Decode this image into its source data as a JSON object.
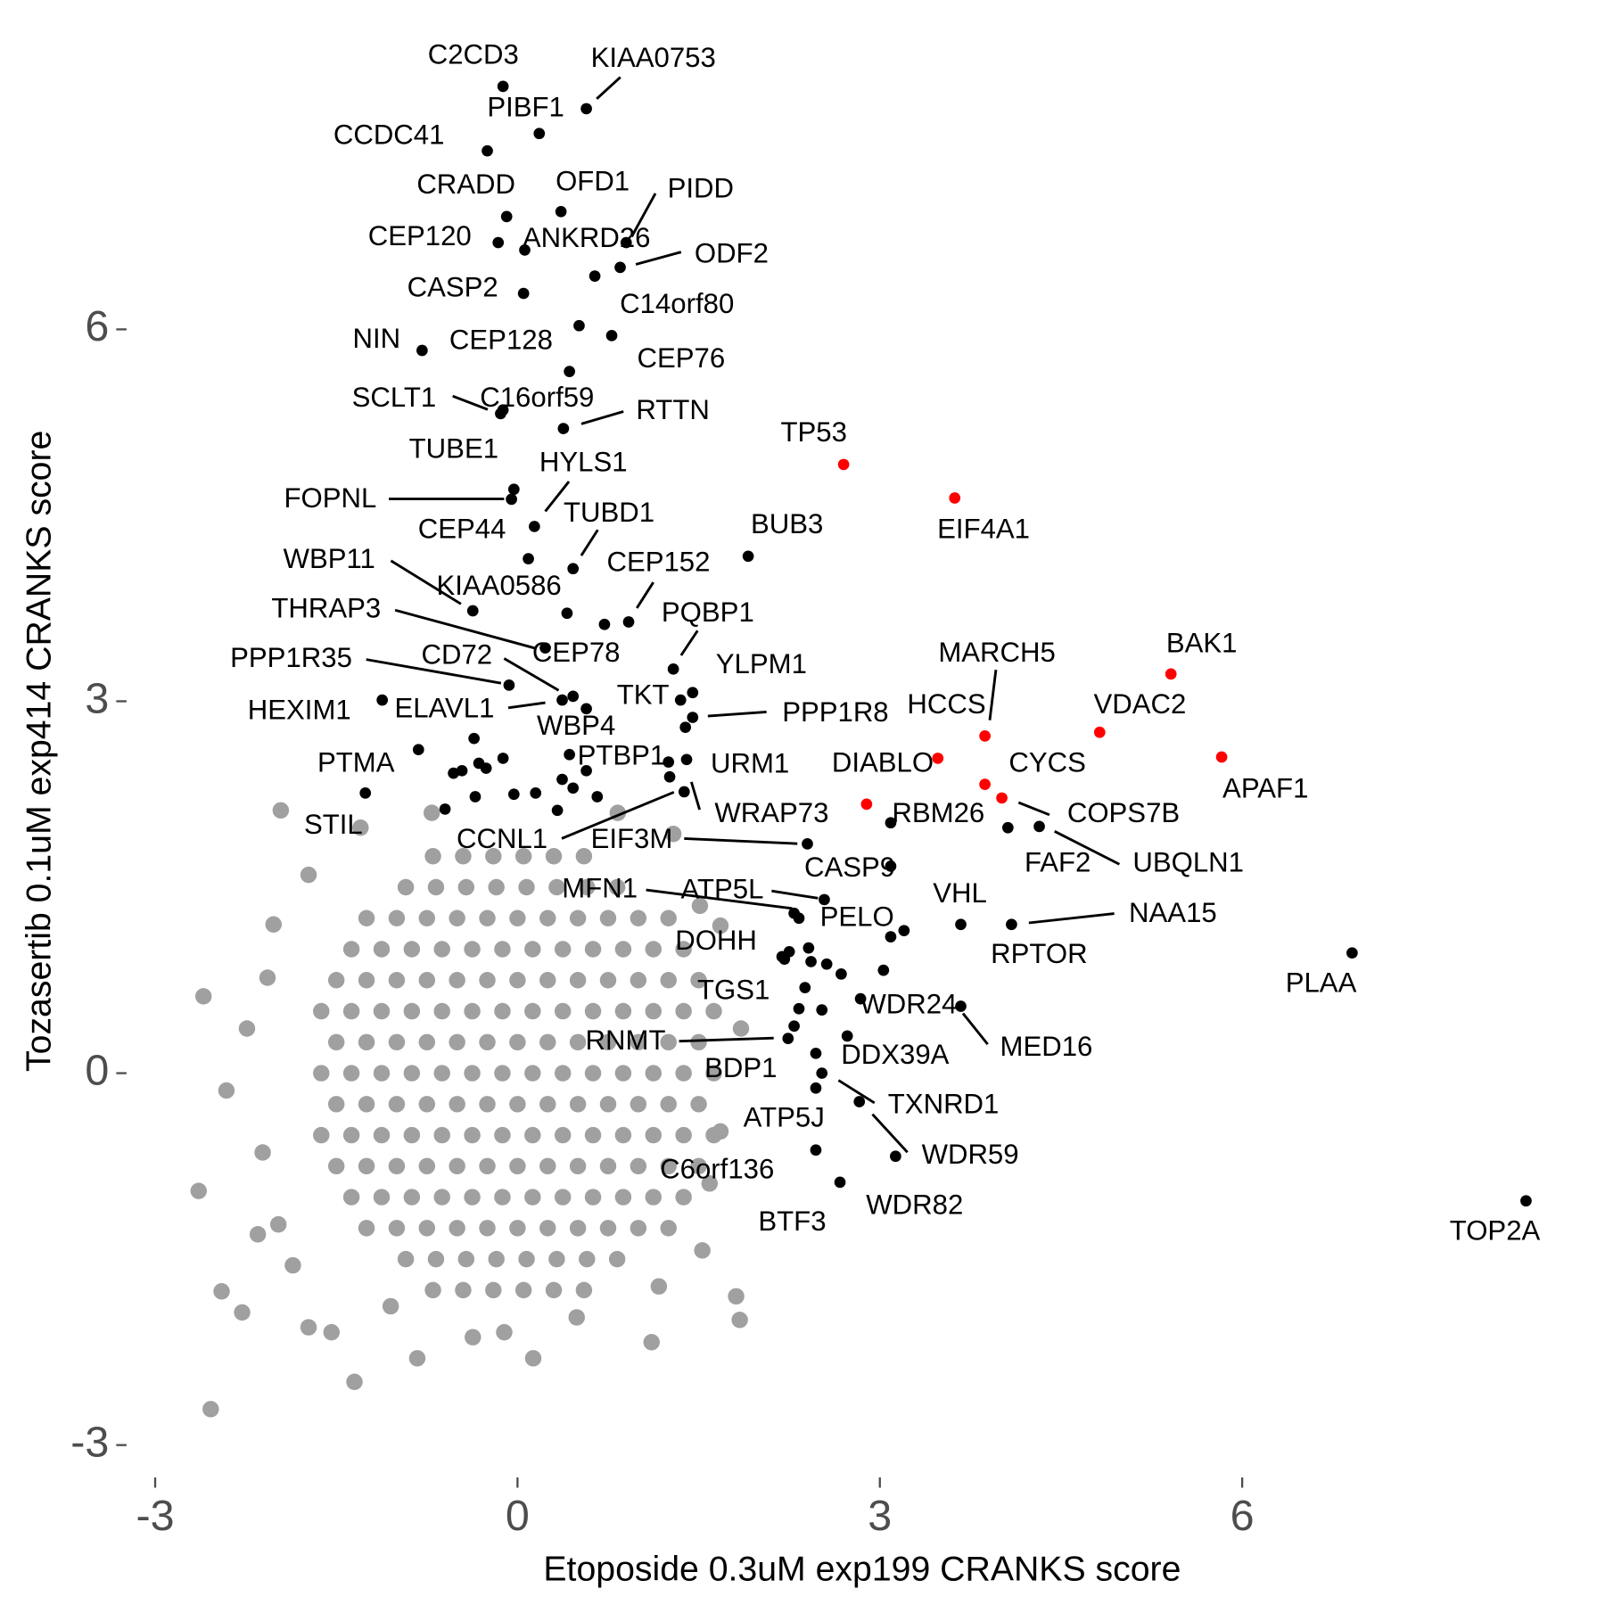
{
  "chart_data": {
    "type": "scatter",
    "xlabel": "Etoposide 0.3uM exp199 CRANKS score",
    "ylabel": "Tozasertib 0.1uM exp414 CRANKS score",
    "xlim": [
      -3.3,
      8.6
    ],
    "ylim": [
      -3.3,
      8.3
    ],
    "xticks": [
      -3,
      0,
      3,
      6
    ],
    "yticks": [
      -3,
      0,
      3,
      6
    ],
    "grid": false,
    "series": [
      {
        "color": "#a0a0a0",
        "x": [
          -0.7,
          -0.45,
          -0.2,
          0.05,
          0.3,
          0.55,
          -0.925,
          -0.675,
          -0.425,
          -0.175,
          0.075,
          0.325,
          0.575,
          0.825,
          -1.25,
          -1,
          -0.75,
          -0.5,
          -0.25,
          0,
          0.25,
          0.5,
          0.75,
          1,
          1.25,
          -1.375,
          -1.125,
          -0.875,
          -0.625,
          -0.375,
          -0.125,
          0.125,
          0.375,
          0.625,
          0.875,
          1.125,
          1.375,
          -1.5,
          -1.25,
          -1,
          -0.75,
          -0.5,
          -0.25,
          0,
          0.25,
          0.5,
          0.75,
          1,
          1.25,
          1.5,
          -1.625,
          -1.375,
          -1.125,
          -0.875,
          -0.625,
          -0.375,
          -0.125,
          0.125,
          0.375,
          0.625,
          0.875,
          1.125,
          1.375,
          1.625,
          -1.5,
          -1.25,
          -1,
          -0.75,
          -0.5,
          -0.25,
          0,
          0.25,
          0.5,
          0.75,
          1,
          1.25,
          1.5,
          -1.625,
          -1.375,
          -1.125,
          -0.875,
          -0.625,
          -0.375,
          -0.125,
          0.125,
          0.375,
          0.625,
          0.875,
          1.125,
          1.375,
          1.625,
          -1.5,
          -1.25,
          -1,
          -0.75,
          -0.5,
          -0.25,
          0,
          0.25,
          0.5,
          0.75,
          1,
          1.25,
          1.5,
          -1.625,
          -1.375,
          -1.125,
          -0.875,
          -0.625,
          -0.375,
          -0.125,
          0.125,
          0.375,
          0.625,
          0.875,
          1.125,
          1.375,
          1.625,
          -1.5,
          -1.25,
          -1,
          -0.75,
          -0.5,
          -0.25,
          0,
          0.25,
          0.5,
          0.75,
          1,
          1.25,
          1.5,
          -1.375,
          -1.125,
          -0.875,
          -0.625,
          -0.375,
          -0.125,
          0.125,
          0.375,
          0.625,
          0.875,
          1.125,
          1.375,
          -1.25,
          -1,
          -0.75,
          -0.5,
          -0.25,
          0,
          0.25,
          0.5,
          0.75,
          1,
          1.25,
          -0.925,
          -0.675,
          -0.425,
          -0.175,
          0.075,
          0.325,
          0.575,
          0.825,
          -0.7,
          -0.45,
          -0.2,
          0.05,
          0.3,
          0.55,
          -2.6,
          -1.96,
          -1.3,
          -2.02,
          -2.41,
          -2.64,
          -2.54,
          -1.35,
          -2.28,
          -2.45,
          -2.11,
          -1.73,
          -1.54,
          -0.83,
          -0.37,
          0.13,
          1.11,
          1.81,
          1.84,
          1.53,
          1.68,
          1.59,
          1.85,
          1.68,
          1.51,
          1.29,
          0.83,
          -0.71,
          -2.07,
          -2.24,
          -1.98,
          -1.86,
          0.49,
          -1.05,
          -0.11,
          -2.15,
          -1.73,
          1.17
        ],
        "y": [
          1.75,
          1.75,
          1.75,
          1.75,
          1.75,
          1.75,
          1.5,
          1.5,
          1.5,
          1.5,
          1.5,
          1.5,
          1.5,
          1.5,
          1.25,
          1.25,
          1.25,
          1.25,
          1.25,
          1.25,
          1.25,
          1.25,
          1.25,
          1.25,
          1.25,
          1,
          1,
          1,
          1,
          1,
          1,
          1,
          1,
          1,
          1,
          1,
          1,
          0.75,
          0.75,
          0.75,
          0.75,
          0.75,
          0.75,
          0.75,
          0.75,
          0.75,
          0.75,
          0.75,
          0.75,
          0.75,
          0.5,
          0.5,
          0.5,
          0.5,
          0.5,
          0.5,
          0.5,
          0.5,
          0.5,
          0.5,
          0.5,
          0.5,
          0.5,
          0.5,
          0.25,
          0.25,
          0.25,
          0.25,
          0.25,
          0.25,
          0.25,
          0.25,
          0.25,
          0.25,
          0.25,
          0.25,
          0.25,
          0,
          0,
          0,
          0,
          0,
          0,
          0,
          0,
          0,
          0,
          0,
          0,
          0,
          0,
          -0.25,
          -0.25,
          -0.25,
          -0.25,
          -0.25,
          -0.25,
          -0.25,
          -0.25,
          -0.25,
          -0.25,
          -0.25,
          -0.25,
          -0.25,
          -0.5,
          -0.5,
          -0.5,
          -0.5,
          -0.5,
          -0.5,
          -0.5,
          -0.5,
          -0.5,
          -0.5,
          -0.5,
          -0.5,
          -0.5,
          -0.5,
          -0.75,
          -0.75,
          -0.75,
          -0.75,
          -0.75,
          -0.75,
          -0.75,
          -0.75,
          -0.75,
          -0.75,
          -0.75,
          -0.75,
          -0.75,
          -1,
          -1,
          -1,
          -1,
          -1,
          -1,
          -1,
          -1,
          -1,
          -1,
          -1,
          -1,
          -1.25,
          -1.25,
          -1.25,
          -1.25,
          -1.25,
          -1.25,
          -1.25,
          -1.25,
          -1.25,
          -1.25,
          -1.25,
          -1.5,
          -1.5,
          -1.5,
          -1.5,
          -1.5,
          -1.5,
          -1.5,
          -1.5,
          -1.75,
          -1.75,
          -1.75,
          -1.75,
          -1.75,
          -1.75,
          0.62,
          2.12,
          1.98,
          1.2,
          -0.14,
          -0.95,
          -2.71,
          -2.49,
          -1.93,
          -1.76,
          -0.64,
          -2.05,
          -2.09,
          -2.3,
          -2.13,
          -2.3,
          -2.17,
          -1.8,
          -1.99,
          -1.43,
          -0.47,
          -0.89,
          0.36,
          1.19,
          1.35,
          1.93,
          2.1,
          2.1,
          0.77,
          0.36,
          -1.22,
          -1.55,
          -1.97,
          -1.88,
          -2.09,
          -1.3,
          1.6,
          -1.72
        ]
      },
      {
        "color": "#000000",
        "labels": [
          "C2CD3",
          "KIAA0753",
          "PIBF1",
          "CCDC41",
          "CRADD",
          "OFD1",
          "PIDD",
          "CEP120",
          "ANKRD26",
          "ODF2",
          null,
          "CASP2",
          "C14orf80",
          "CEP76",
          "NIN",
          "CEP128",
          "C16orf59",
          "SCLT1",
          "RTTN",
          "TUBE1",
          "FOPNL",
          "HYLS1",
          "CEP44",
          "TUBD1",
          "BUB3",
          "WBP11",
          "KIAA0586",
          "CEP152",
          null,
          "THRAP3",
          "PQBP1",
          "CD72",
          "PPP1R35",
          "YLPM1",
          "TKT",
          "HEXIM1",
          "ELAVL1",
          "CEP78",
          "PPP1R8",
          null,
          "WBP4",
          "PTMA",
          "STIL",
          "PTBP1",
          "URM1",
          "WRAP73",
          "CCNL1",
          "EIF3M",
          "CASP9",
          "RBM26",
          "FAF2",
          "UBQLN1",
          "MFN1",
          "ATP5L",
          "PELO",
          "VHL",
          "NAA15",
          "RPTOR",
          null,
          "PLAA",
          "DOHH",
          "TGS1",
          "WDR24",
          "MED16",
          "RNMT",
          "DDX39A",
          "BDP1",
          "BTF3",
          "TXNRD1",
          "ATP5J",
          "WDR59",
          "C6orf136",
          "WDR82",
          "TOP2A",
          null,
          null,
          null,
          null,
          null,
          null,
          null,
          null,
          null,
          null,
          null,
          null,
          null,
          null,
          null,
          null,
          null,
          null,
          null,
          null,
          null,
          null,
          null,
          null,
          null
        ],
        "x": [
          -0.12,
          0.57,
          0.18,
          -0.25,
          -0.09,
          0.36,
          0.9,
          -0.16,
          0.06,
          0.85,
          0.64,
          0.05,
          0.51,
          0.78,
          -0.79,
          0.43,
          -0.12,
          -0.14,
          0.38,
          -0.03,
          -0.05,
          0.14,
          0.09,
          0.46,
          1.91,
          -0.37,
          0.41,
          0.92,
          0.72,
          0.23,
          1.29,
          0.37,
          -0.07,
          1.45,
          1.35,
          -1.12,
          0.46,
          0.57,
          1.45,
          1.39,
          0.43,
          -1.26,
          -0.82,
          1.25,
          1.4,
          1.26,
          1.38,
          2.4,
          3.09,
          3.09,
          4.06,
          4.32,
          2.29,
          2.54,
          2.33,
          3.67,
          4.09,
          3.2,
          3.09,
          6.91,
          2.19,
          2.38,
          2.84,
          3.67,
          2.24,
          2.73,
          2.47,
          2.52,
          2.47,
          2.83,
          3.13,
          2.47,
          2.67,
          8.35,
          -0.36,
          -0.12,
          -0.53,
          -0.46,
          -0.32,
          -0.26,
          -0.03,
          0.15,
          0.37,
          0.46,
          0.66,
          -0.35,
          -0.6,
          0.33,
          0.57,
          2.68,
          3.03,
          2.56,
          2.41,
          2.43,
          2.25,
          2.33,
          2.52,
          2.29,
          2.21
        ],
        "y": [
          7.96,
          7.78,
          7.58,
          7.44,
          6.91,
          6.95,
          6.7,
          6.7,
          6.64,
          6.5,
          6.43,
          6.29,
          6.03,
          5.95,
          5.83,
          5.66,
          5.35,
          5.32,
          5.2,
          4.71,
          4.63,
          4.41,
          4.15,
          4.07,
          4.17,
          3.73,
          3.71,
          3.64,
          3.62,
          3.43,
          3.26,
          3.01,
          3.13,
          3.07,
          3.01,
          3.01,
          3.04,
          2.94,
          2.87,
          2.79,
          2.57,
          2.26,
          2.61,
          2.51,
          2.53,
          2.39,
          2.27,
          1.85,
          1.67,
          2.02,
          1.98,
          1.99,
          1.29,
          1.4,
          1.25,
          1.2,
          1.2,
          1.15,
          1.1,
          0.97,
          0.94,
          0.69,
          0.6,
          0.54,
          0.28,
          0.3,
          0.16,
          0,
          -0.12,
          -0.23,
          -0.67,
          -0.62,
          -0.88,
          -1.03,
          2.7,
          2.54,
          2.42,
          2.44,
          2.5,
          2.46,
          2.25,
          2.26,
          2.37,
          2.3,
          2.23,
          2.23,
          2.13,
          2.12,
          2.44,
          0.8,
          0.83,
          0.88,
          1.01,
          0.9,
          0.98,
          0.52,
          0.51,
          0.38,
          0.92
        ]
      },
      {
        "color": "#ff0000",
        "labels": [
          "TP53",
          "EIF4A1",
          "MARCH5",
          "BAK1",
          "HCCS",
          "VDAC2",
          "APAF1",
          "DIABLO",
          "CYCS",
          "COPS7B"
        ],
        "x": [
          2.7,
          3.62,
          3.87,
          5.41,
          3.48,
          4.82,
          5.83,
          2.89,
          3.87,
          4.01
        ],
        "y": [
          4.91,
          4.64,
          2.72,
          3.22,
          2.54,
          2.75,
          2.55,
          2.17,
          2.33,
          2.22
        ]
      }
    ]
  }
}
